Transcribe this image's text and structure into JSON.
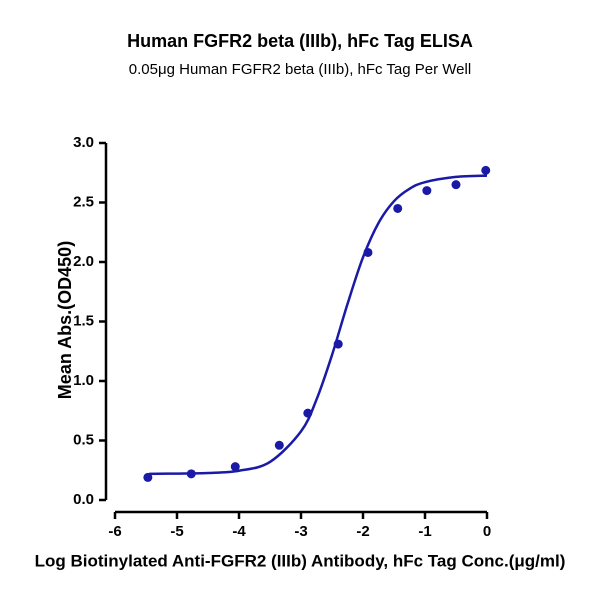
{
  "chart_data": {
    "type": "scatter",
    "title": "Human FGFR2 beta (IIIb), hFc Tag ELISA",
    "subtitle": "0.05μg Human FGFR2 beta (IIIb), hFc Tag Per Well",
    "x_label": "Log Biotinylated Anti-FGFR2 (IIIb) Antibody, hFc Tag Conc.(μg/ml)",
    "y_label": "Mean Abs.(OD450)",
    "color": "#1a1aa6",
    "x": [
      -5.47,
      -4.77,
      -4.06,
      -3.35,
      -2.89,
      -2.4,
      -1.92,
      -1.44,
      -0.97,
      -0.5,
      -0.02
    ],
    "values": [
      0.19,
      0.22,
      0.28,
      0.46,
      0.73,
      1.31,
      2.08,
      2.45,
      2.6,
      2.65,
      2.77
    ],
    "curve": {
      "x": [
        -5.45,
        -5,
        -4.5,
        -4,
        -3.5,
        -3,
        -2.75,
        -2.5,
        -2.25,
        -2,
        -1.75,
        -1.5,
        -1.25,
        -1,
        -0.5,
        0
      ],
      "y": [
        0.22,
        0.222,
        0.227,
        0.246,
        0.32,
        0.577,
        0.844,
        1.218,
        1.647,
        2.039,
        2.328,
        2.511,
        2.615,
        2.671,
        2.715,
        2.726
      ]
    },
    "xlim": [
      -6,
      0
    ],
    "xticks": [
      -6,
      -5,
      -4,
      -3,
      -2,
      -1,
      0
    ],
    "ylim": [
      0,
      3
    ],
    "yticks": [
      {
        "value": 0,
        "label": "0.0"
      },
      {
        "value": 0.5,
        "label": "0.5"
      },
      {
        "value": 1,
        "label": "1.0"
      },
      {
        "value": 1.5,
        "label": "1.5"
      },
      {
        "value": 2,
        "label": "2.0"
      },
      {
        "value": 2.5,
        "label": "2.5"
      },
      {
        "value": 3,
        "label": "3.0"
      }
    ]
  }
}
